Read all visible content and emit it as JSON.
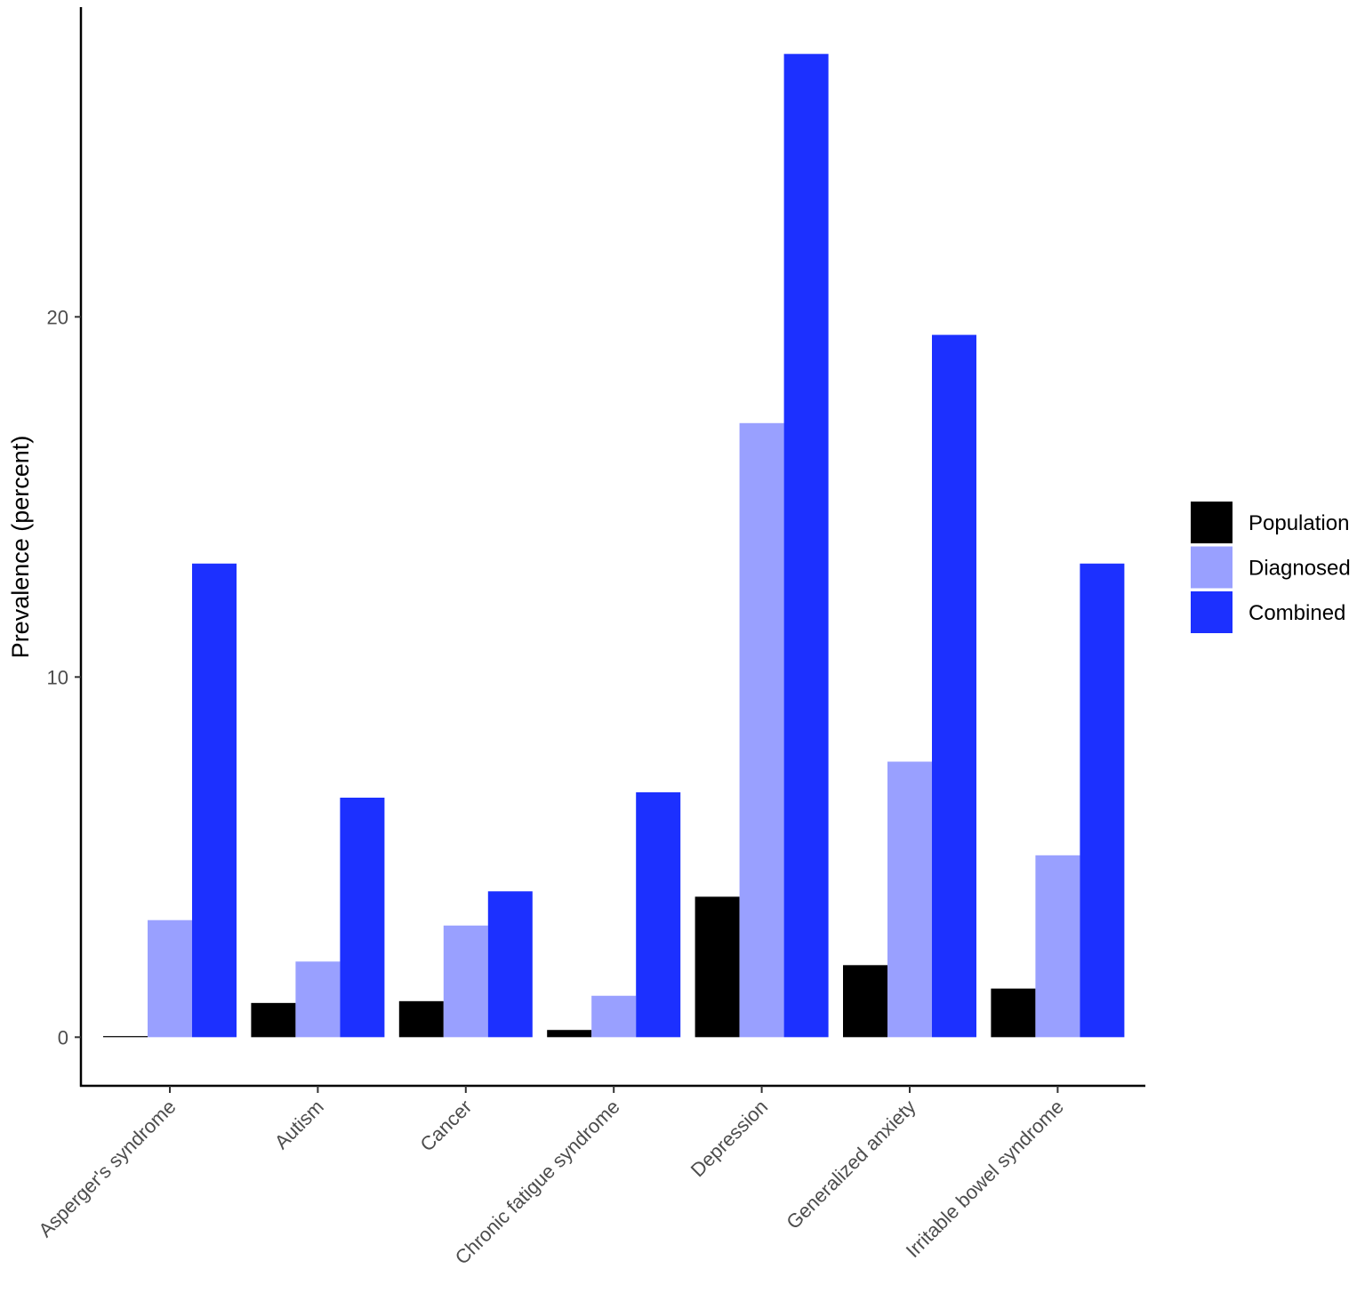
{
  "chart_data": {
    "type": "bar",
    "title": "",
    "xlabel": "",
    "ylabel": "Prevalence (percent)",
    "ylim": [
      -1.35,
      28.6
    ],
    "yticks": [
      0,
      10,
      20
    ],
    "grid": false,
    "legend_position": "right",
    "categories": [
      "Asperger's syndrome",
      "Autism",
      "Cancer",
      "Chronic fatigue syndrome",
      "Depression",
      "Generalized anxiety",
      "Irritable bowel syndrome"
    ],
    "series": [
      {
        "name": "Population",
        "color": "#000000",
        "values": [
          0.03,
          0.95,
          1.0,
          0.2,
          3.9,
          2.0,
          1.35
        ]
      },
      {
        "name": "Diagnosed",
        "color": "#99a0ff",
        "values": [
          3.25,
          2.1,
          3.1,
          1.15,
          17.05,
          7.65,
          5.05
        ]
      },
      {
        "name": "Combined",
        "color": "#1c30ff",
        "values": [
          13.15,
          6.65,
          4.05,
          6.8,
          27.3,
          19.5,
          13.15
        ]
      }
    ]
  }
}
